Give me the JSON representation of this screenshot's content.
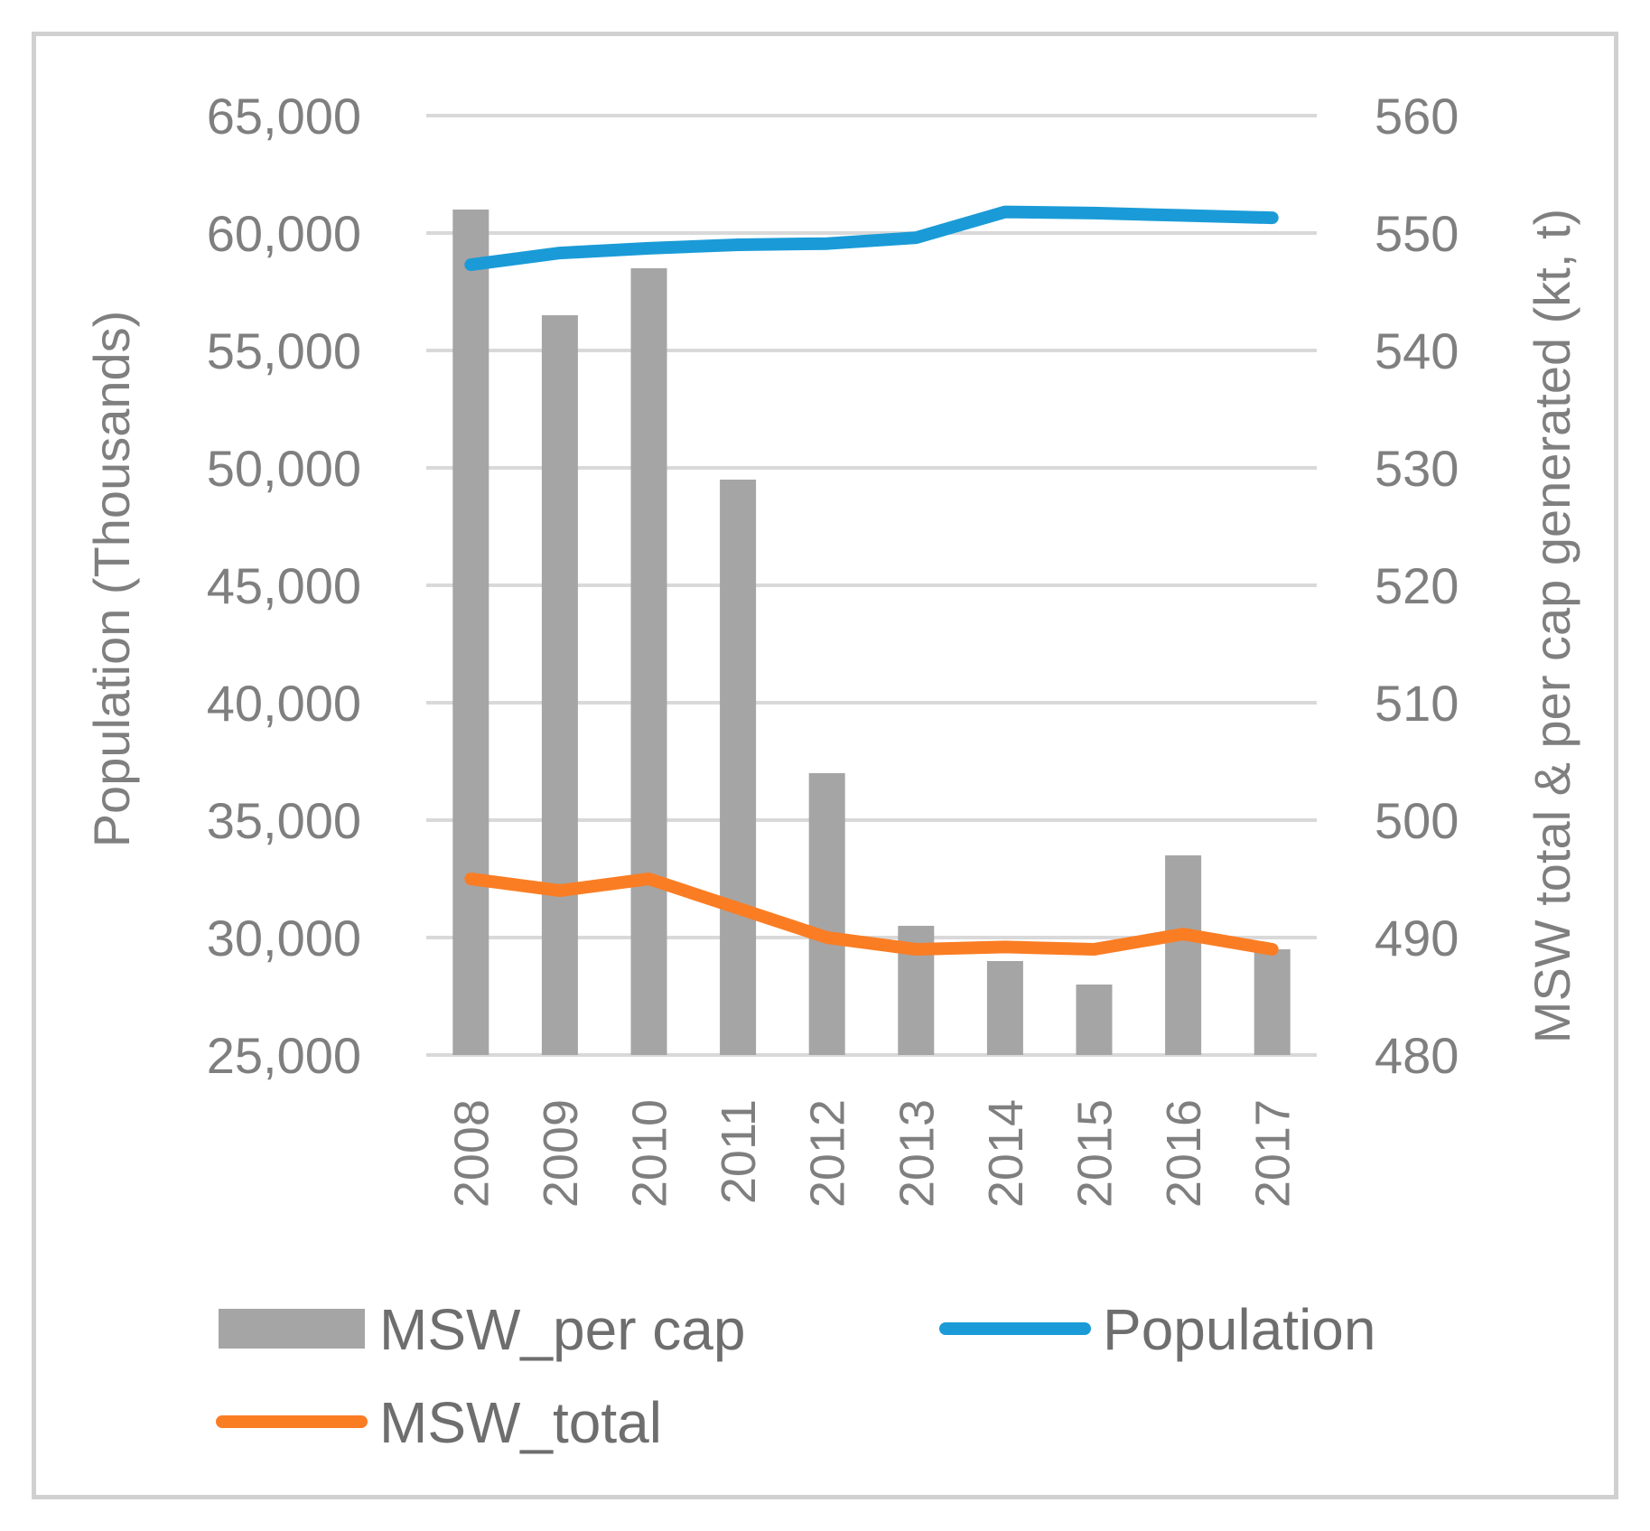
{
  "chart_data": {
    "type": "bar+line",
    "categories": [
      "2008",
      "2009",
      "2010",
      "2011",
      "2012",
      "2013",
      "2014",
      "2015",
      "2016",
      "2017"
    ],
    "y_left": {
      "label": "Population (Thousands)",
      "ticks": [
        "65,000",
        "60,000",
        "55,000",
        "50,000",
        "45,000",
        "40,000",
        "35,000",
        "30,000",
        "25,000"
      ],
      "range": [
        25000,
        65000
      ]
    },
    "y_right": {
      "label": "MSW total & per cap generated (kt, t)",
      "ticks": [
        "560",
        "550",
        "540",
        "530",
        "520",
        "510",
        "500",
        "490",
        "480"
      ],
      "range": [
        480,
        560
      ]
    },
    "grid": true,
    "series": [
      {
        "name": "MSW_per cap",
        "type": "bar",
        "axis": "right",
        "color": "#a5a5a5",
        "values": [
          552,
          543,
          547,
          529,
          504,
          491,
          488,
          486,
          497,
          489
        ]
      },
      {
        "name": "Population",
        "type": "line",
        "axis": "left",
        "color": "#1a9bd7",
        "values": [
          58650,
          59150,
          59350,
          59500,
          59550,
          59800,
          60900,
          60850,
          60750,
          60650
        ]
      },
      {
        "name": "MSW_total",
        "type": "line",
        "axis": "right",
        "color": "#fa7d24",
        "values": [
          495,
          494,
          495,
          492.5,
          490,
          489,
          489.2,
          489,
          490.3,
          489
        ]
      }
    ],
    "legend": {
      "position": "bottom",
      "items": [
        {
          "label": "MSW_per cap",
          "kind": "bar",
          "color": "#a5a5a5"
        },
        {
          "label": "Population",
          "kind": "line",
          "color": "#1a9bd7"
        },
        {
          "label": "MSW_total",
          "kind": "line",
          "color": "#fa7d24"
        }
      ]
    }
  }
}
